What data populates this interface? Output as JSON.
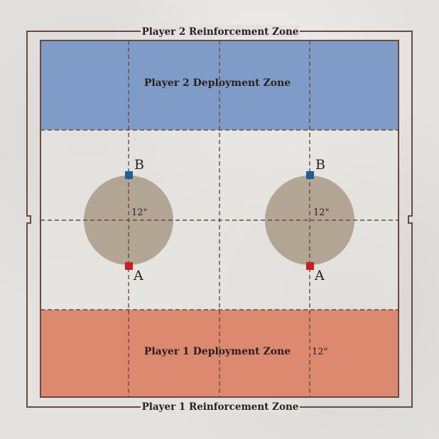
{
  "board": {
    "reinforcement_top": "Player 2 Reinforcement Zone",
    "reinforcement_bottom": "Player 1 Reinforcement Zone",
    "deployment_top": "Player 2 Deployment Zone",
    "deployment_bottom": "Player 1 Deployment Zone",
    "measure_bottom": "12\"",
    "colors": {
      "player2_zone": "#7f9cc8",
      "player1_zone": "#dc8970",
      "objective_circle": "#ad9f8c",
      "marker_b": "#1d5f96",
      "marker_a": "#c62024",
      "lines": "#6a4a3c"
    }
  },
  "objectives": [
    {
      "top_label": "B",
      "bottom_label": "A",
      "radius_label": "12\""
    },
    {
      "top_label": "B",
      "bottom_label": "A",
      "radius_label": "12\""
    }
  ]
}
